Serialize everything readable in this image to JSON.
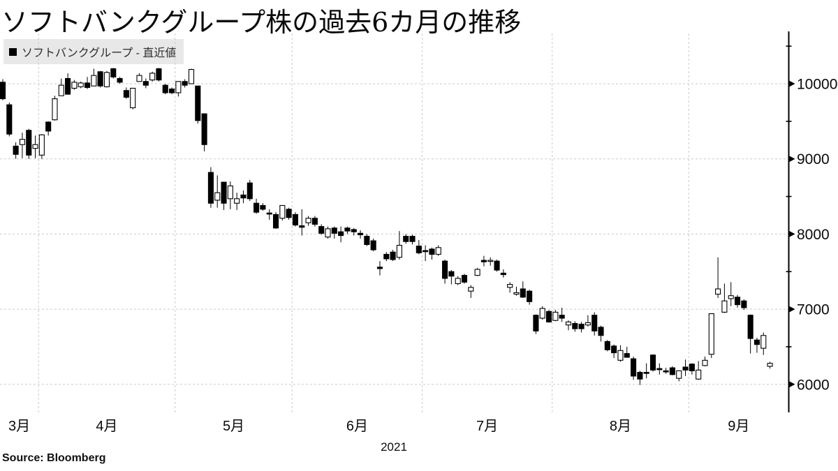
{
  "title": "ソフトバンクグループ株の過去6カ月の推移",
  "legend": {
    "marker_icon": "black-square-icon",
    "label": "ソフトバンクグループ - 直近値"
  },
  "source": "Source:  Bloomberg",
  "colors": {
    "background": "#ffffff",
    "up_candle": "#ffffff",
    "down_candle": "#000000",
    "candle_outline": "#000000",
    "gridline": "#c9c9c9",
    "axis": "#000000",
    "legend_background": "#e8e8e8"
  },
  "chart_data": {
    "type": "candlestick",
    "series_name": "ソフトバンクグループ",
    "title": "ソフトバンクグループ株の過去6カ月の推移",
    "year_label": "2021",
    "ylim": [
      5800,
      10500
    ],
    "y_ticks": [
      10000,
      9000,
      8000,
      7000,
      6000
    ],
    "y_minor_ticks": [
      10500,
      9500,
      8500,
      7500,
      6500
    ],
    "grid": "dashed",
    "legend_position": "top-left",
    "months": [
      {
        "label": "3月",
        "days": 6
      },
      {
        "label": "4月",
        "days": 21
      },
      {
        "label": "5月",
        "days": 18
      },
      {
        "label": "6月",
        "days": 20
      },
      {
        "label": "7月",
        "days": 20
      },
      {
        "label": "8月",
        "days": 21
      },
      {
        "label": "9月",
        "days": 13
      }
    ],
    "dates": [
      "03-24",
      "03-25",
      "03-26",
      "03-29",
      "03-30",
      "03-31",
      "04-01",
      "04-02",
      "04-05",
      "04-06",
      "04-07",
      "04-08",
      "04-09",
      "04-12",
      "04-13",
      "04-14",
      "04-15",
      "04-16",
      "04-19",
      "04-20",
      "04-21",
      "04-22",
      "04-23",
      "04-26",
      "04-27",
      "04-28",
      "04-30",
      "05-06",
      "05-07",
      "05-10",
      "05-11",
      "05-12",
      "05-13",
      "05-14",
      "05-17",
      "05-18",
      "05-19",
      "05-20",
      "05-21",
      "05-24",
      "05-25",
      "05-26",
      "05-27",
      "05-28",
      "05-31",
      "06-01",
      "06-02",
      "06-03",
      "06-04",
      "06-07",
      "06-08",
      "06-09",
      "06-10",
      "06-11",
      "06-14",
      "06-15",
      "06-16",
      "06-17",
      "06-18",
      "06-21",
      "06-22",
      "06-23",
      "06-24",
      "06-25",
      "06-28",
      "07-01",
      "07-02",
      "07-05",
      "07-06",
      "07-07",
      "07-08",
      "07-09",
      "07-12",
      "07-13",
      "07-14",
      "07-15",
      "07-16",
      "07-19",
      "07-20",
      "07-21",
      "07-26",
      "07-27",
      "07-28",
      "07-29",
      "07-30",
      "08-02",
      "08-03",
      "08-04",
      "08-05",
      "08-06",
      "08-10",
      "08-11",
      "08-12",
      "08-13",
      "08-16",
      "08-17",
      "08-18",
      "08-19",
      "08-20",
      "08-23",
      "08-24",
      "08-25",
      "08-26",
      "08-27",
      "08-30",
      "08-31",
      "09-01",
      "09-02",
      "09-03",
      "09-06",
      "09-07",
      "09-08",
      "09-09",
      "09-10",
      "09-13",
      "09-14",
      "09-15",
      "09-16",
      "09-17"
    ],
    "ohlc": [
      [
        10020,
        10060,
        9780,
        9800
      ],
      [
        9720,
        9750,
        9300,
        9330
      ],
      [
        9170,
        9220,
        9000,
        9060
      ],
      [
        9190,
        9350,
        9010,
        9260
      ],
      [
        9380,
        9400,
        9000,
        9050
      ],
      [
        9140,
        9310,
        9010,
        9190
      ],
      [
        9050,
        9330,
        9000,
        9320
      ],
      [
        9490,
        9500,
        9310,
        9370
      ],
      [
        9520,
        9840,
        9510,
        9800
      ],
      [
        9840,
        10070,
        9840,
        9980
      ],
      [
        10070,
        10140,
        9860,
        9860
      ],
      [
        9940,
        10050,
        9920,
        10020
      ],
      [
        9960,
        10030,
        9940,
        10010
      ],
      [
        10010,
        10090,
        9930,
        9950
      ],
      [
        9970,
        10200,
        9970,
        10110
      ],
      [
        10160,
        10170,
        9950,
        9970
      ],
      [
        9960,
        10170,
        9950,
        10150
      ],
      [
        10200,
        10210,
        10070,
        10090
      ],
      [
        10070,
        10090,
        10000,
        10020
      ],
      [
        9910,
        9950,
        9800,
        9820
      ],
      [
        9680,
        9940,
        9660,
        9940
      ],
      [
        10030,
        10140,
        10030,
        10110
      ],
      [
        10030,
        10070,
        9940,
        9980
      ],
      [
        10050,
        10160,
        10030,
        10140
      ],
      [
        10200,
        10210,
        10030,
        10050
      ],
      [
        9980,
        10000,
        9860,
        9880
      ],
      [
        9930,
        9950,
        9860,
        9880
      ],
      [
        9880,
        10030,
        9830,
        10030
      ],
      [
        10030,
        10060,
        9950,
        9980
      ],
      [
        10000,
        10200,
        10000,
        10190
      ],
      [
        9970,
        9970,
        9470,
        9510
      ],
      [
        9600,
        9600,
        9100,
        9190
      ],
      [
        8820,
        8890,
        8350,
        8410
      ],
      [
        8450,
        8780,
        8350,
        8550
      ],
      [
        8690,
        8690,
        8320,
        8410
      ],
      [
        8470,
        8700,
        8330,
        8640
      ],
      [
        8410,
        8550,
        8320,
        8470
      ],
      [
        8520,
        8580,
        8410,
        8480
      ],
      [
        8680,
        8720,
        8440,
        8470
      ],
      [
        8410,
        8470,
        8270,
        8290
      ],
      [
        8380,
        8410,
        8310,
        8330
      ],
      [
        8280,
        8330,
        8190,
        8270
      ],
      [
        8260,
        8290,
        8070,
        8080
      ],
      [
        8210,
        8380,
        8180,
        8380
      ],
      [
        8330,
        8350,
        8190,
        8220
      ],
      [
        8260,
        8290,
        8100,
        8120
      ],
      [
        8110,
        8330,
        7980,
        8090
      ],
      [
        8150,
        8240,
        8110,
        8210
      ],
      [
        8210,
        8240,
        8100,
        8130
      ],
      [
        8100,
        8130,
        7990,
        8010
      ],
      [
        7960,
        8100,
        7940,
        8070
      ],
      [
        8080,
        8100,
        7940,
        8010
      ],
      [
        8030,
        8100,
        7890,
        7980
      ],
      [
        8080,
        8100,
        8000,
        8040
      ],
      [
        8060,
        8080,
        7980,
        8030
      ],
      [
        8010,
        8050,
        7940,
        7990
      ],
      [
        7970,
        8000,
        7840,
        7860
      ],
      [
        7910,
        7940,
        7770,
        7790
      ],
      [
        7560,
        7640,
        7450,
        7540
      ],
      [
        7730,
        7760,
        7640,
        7670
      ],
      [
        7760,
        7790,
        7640,
        7660
      ],
      [
        7690,
        8040,
        7660,
        7850
      ],
      [
        7970,
        8000,
        7870,
        7900
      ],
      [
        7970,
        7990,
        7860,
        7900
      ],
      [
        7840,
        7920,
        7730,
        7750
      ],
      [
        7780,
        7850,
        7640,
        7770
      ],
      [
        7800,
        7820,
        7660,
        7730
      ],
      [
        7730,
        7850,
        7710,
        7820
      ],
      [
        7640,
        7660,
        7340,
        7410
      ],
      [
        7500,
        7520,
        7330,
        7440
      ],
      [
        7340,
        7440,
        7320,
        7410
      ],
      [
        7450,
        7470,
        7340,
        7360
      ],
      [
        7240,
        7320,
        7150,
        7290
      ],
      [
        7450,
        7550,
        7440,
        7530
      ],
      [
        7650,
        7710,
        7570,
        7630
      ],
      [
        7640,
        7690,
        7580,
        7650
      ],
      [
        7640,
        7660,
        7500,
        7520
      ],
      [
        7480,
        7530,
        7420,
        7460
      ],
      [
        7290,
        7360,
        7220,
        7330
      ],
      [
        7200,
        7300,
        7180,
        7220
      ],
      [
        7270,
        7370,
        7150,
        7160
      ],
      [
        7240,
        7260,
        7060,
        7100
      ],
      [
        6920,
        6930,
        6670,
        6710
      ],
      [
        6880,
        7040,
        6860,
        7010
      ],
      [
        6970,
        6990,
        6820,
        6830
      ],
      [
        6850,
        6990,
        6840,
        6960
      ],
      [
        6920,
        7020,
        6830,
        6880
      ],
      [
        6790,
        6850,
        6720,
        6830
      ],
      [
        6810,
        6840,
        6700,
        6740
      ],
      [
        6800,
        6830,
        6690,
        6740
      ],
      [
        6790,
        6920,
        6770,
        6820
      ],
      [
        6920,
        6960,
        6650,
        6710
      ],
      [
        6760,
        6780,
        6570,
        6650
      ],
      [
        6570,
        6590,
        6440,
        6460
      ],
      [
        6510,
        6530,
        6350,
        6420
      ],
      [
        6320,
        6520,
        6300,
        6450
      ],
      [
        6410,
        6500,
        6360,
        6360
      ],
      [
        6340,
        6370,
        6060,
        6110
      ],
      [
        6160,
        6180,
        5990,
        6070
      ],
      [
        6160,
        6280,
        6080,
        6150
      ],
      [
        6390,
        6400,
        6170,
        6190
      ],
      [
        6210,
        6280,
        6130,
        6200
      ],
      [
        6180,
        6220,
        6140,
        6170
      ],
      [
        6220,
        6240,
        6120,
        6130
      ],
      [
        6080,
        6180,
        6040,
        6180
      ],
      [
        6230,
        6330,
        6110,
        6190
      ],
      [
        6270,
        6280,
        6130,
        6180
      ],
      [
        6070,
        6310,
        6060,
        6190
      ],
      [
        6250,
        6370,
        6240,
        6320
      ],
      [
        6400,
        6940,
        6350,
        6940
      ],
      [
        7200,
        7690,
        7150,
        7270
      ],
      [
        6960,
        7340,
        6950,
        7110
      ],
      [
        7140,
        7360,
        7040,
        7180
      ],
      [
        7160,
        7190,
        7020,
        7060
      ],
      [
        7110,
        7130,
        6990,
        7020
      ],
      [
        6920,
        6930,
        6410,
        6610
      ],
      [
        6590,
        6620,
        6420,
        6530
      ],
      [
        6480,
        6690,
        6390,
        6650
      ],
      [
        6240,
        6300,
        6210,
        6280
      ]
    ]
  }
}
